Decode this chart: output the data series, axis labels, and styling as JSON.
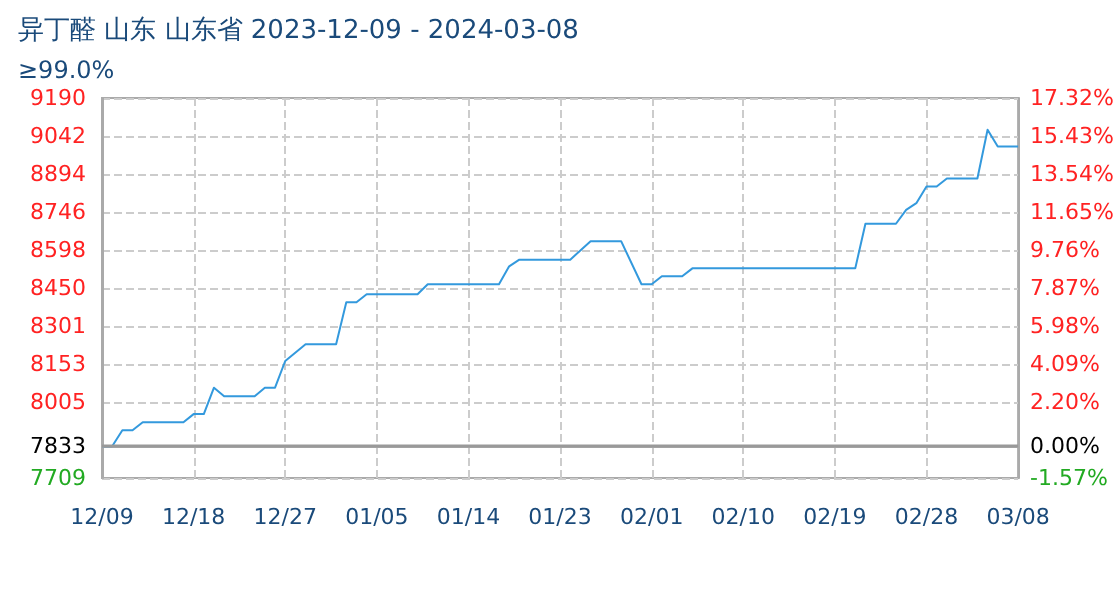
{
  "chart_data": {
    "type": "line",
    "title": "异丁醛 山东 山东省 2023-12-09 - 2024-03-08",
    "subtitle": "≥99.0%",
    "x": [
      "2023-12-09",
      "2023-12-10",
      "2023-12-11",
      "2023-12-12",
      "2023-12-13",
      "2023-12-17",
      "2023-12-18",
      "2023-12-19",
      "2023-12-20",
      "2023-12-21",
      "2023-12-24",
      "2023-12-25",
      "2023-12-26",
      "2023-12-27",
      "2023-12-29",
      "2024-01-01",
      "2024-01-02",
      "2024-01-03",
      "2024-01-04",
      "2024-01-09",
      "2024-01-10",
      "2024-01-17",
      "2024-01-18",
      "2024-01-19",
      "2024-01-24",
      "2024-01-26",
      "2024-01-29",
      "2024-01-31",
      "2024-02-01",
      "2024-02-02",
      "2024-02-04",
      "2024-02-05",
      "2024-02-21",
      "2024-02-22",
      "2024-02-25",
      "2024-02-26",
      "2024-02-27",
      "2024-02-28",
      "2024-02-29",
      "2024-03-01",
      "2024-03-04",
      "2024-03-05",
      "2024-03-06",
      "2024-03-08"
    ],
    "series": [
      {
        "color": "#3399dd",
        "values": [
          7833,
          7833,
          7895,
          7895,
          7926,
          7926,
          7958,
          7958,
          8061,
          8028,
          8028,
          8061,
          8061,
          8165,
          8230,
          8230,
          8394,
          8394,
          8425,
          8425,
          8464,
          8464,
          8534,
          8560,
          8560,
          8632,
          8632,
          8464,
          8464,
          8495,
          8495,
          8526,
          8526,
          8700,
          8700,
          8754,
          8780,
          8845,
          8845,
          8876,
          8876,
          9066,
          9001,
          9001
        ]
      }
    ],
    "xlim": [
      "2023-12-09",
      "2024-03-08"
    ],
    "xticks": [
      {
        "value": "2023-12-09",
        "label": "12/09"
      },
      {
        "value": "2023-12-18",
        "label": "12/18"
      },
      {
        "value": "2023-12-27",
        "label": "12/27"
      },
      {
        "value": "2024-01-05",
        "label": "01/05"
      },
      {
        "value": "2024-01-14",
        "label": "01/14"
      },
      {
        "value": "2024-01-23",
        "label": "01/23"
      },
      {
        "value": "2024-02-01",
        "label": "02/01"
      },
      {
        "value": "2024-02-10",
        "label": "02/10"
      },
      {
        "value": "2024-02-19",
        "label": "02/19"
      },
      {
        "value": "2024-02-28",
        "label": "02/28"
      },
      {
        "value": "2024-03-08",
        "label": "03/08"
      }
    ],
    "ylim": [
      7709,
      9190
    ],
    "yticks": [
      7709,
      7833,
      8005,
      8153,
      8301,
      8450,
      8598,
      8746,
      8894,
      9042,
      9190
    ],
    "y2lim": [
      -1.57,
      17.32
    ],
    "y2ticks": [
      {
        "value": -1.57,
        "label": "-1.57%"
      },
      {
        "value": 0,
        "label": "0.00%"
      },
      {
        "value": 2.2,
        "label": "2.20%"
      },
      {
        "value": 4.09,
        "label": "4.09%"
      },
      {
        "value": 5.98,
        "label": "5.98%"
      },
      {
        "value": 7.87,
        "label": "7.87%"
      },
      {
        "value": 9.76,
        "label": "9.76%"
      },
      {
        "value": 11.65,
        "label": "11.65%"
      },
      {
        "value": 13.54,
        "label": "13.54%"
      },
      {
        "value": 15.43,
        "label": "15.43%"
      },
      {
        "value": 17.32,
        "label": "17.32%"
      }
    ],
    "ref_lines": [
      {
        "axis": "y",
        "value": 7833,
        "color": "#999999"
      }
    ],
    "grid": true,
    "marker": "none",
    "line_style": "solid"
  }
}
